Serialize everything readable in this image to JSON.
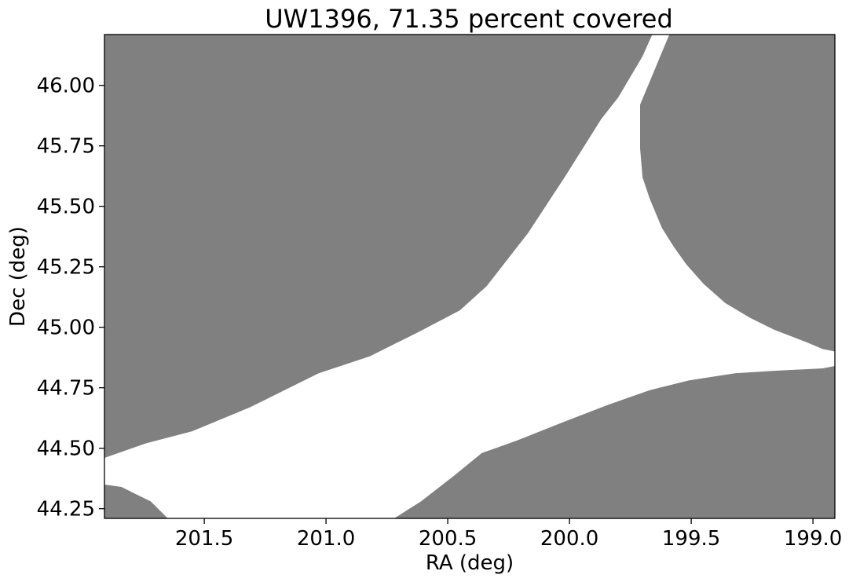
{
  "chart_data": {
    "type": "area",
    "title": "UW1396, 71.35 percent covered",
    "xlabel": "RA (deg)",
    "ylabel": "Dec (deg)",
    "xlim": [
      201.91,
      198.91
    ],
    "ylim": [
      44.21,
      46.21
    ],
    "x_ticks": [
      201.5,
      201.0,
      200.5,
      200.0,
      199.5,
      199.0
    ],
    "x_tick_labels": [
      "201.5",
      "201.0",
      "200.5",
      "200.0",
      "199.5",
      "199.0"
    ],
    "y_ticks": [
      44.25,
      44.5,
      44.75,
      45.0,
      45.25,
      45.5,
      45.75,
      46.0
    ],
    "y_tick_labels": [
      "44.25",
      "44.50",
      "44.75",
      "45.00",
      "45.25",
      "45.50",
      "45.75",
      "46.00"
    ],
    "grid": false,
    "fill_color": "#808080",
    "regions": [
      {
        "points": [
          [
            201.91,
            46.21
          ],
          [
            199.66,
            46.21
          ],
          [
            199.7,
            46.12
          ],
          [
            199.8,
            45.95
          ],
          [
            199.87,
            45.86
          ],
          [
            200.02,
            45.62
          ],
          [
            200.17,
            45.39
          ],
          [
            200.34,
            45.17
          ],
          [
            200.45,
            45.07
          ],
          [
            200.62,
            44.98
          ],
          [
            200.82,
            44.88
          ],
          [
            201.03,
            44.81
          ],
          [
            201.31,
            44.67
          ],
          [
            201.55,
            44.57
          ],
          [
            201.74,
            44.52
          ],
          [
            201.91,
            44.46
          ]
        ]
      },
      {
        "points": [
          [
            199.59,
            46.21
          ],
          [
            198.91,
            46.21
          ],
          [
            198.91,
            44.9
          ],
          [
            198.96,
            44.91
          ],
          [
            199.03,
            44.94
          ],
          [
            199.16,
            44.99
          ],
          [
            199.26,
            45.04
          ],
          [
            199.36,
            45.1
          ],
          [
            199.45,
            45.18
          ],
          [
            199.52,
            45.26
          ],
          [
            199.57,
            45.33
          ],
          [
            199.62,
            45.41
          ],
          [
            199.67,
            45.53
          ],
          [
            199.7,
            45.62
          ],
          [
            199.71,
            45.74
          ],
          [
            199.71,
            45.92
          ],
          [
            199.59,
            46.21
          ]
        ]
      },
      {
        "points": [
          [
            200.72,
            44.21
          ],
          [
            200.61,
            44.28
          ],
          [
            200.47,
            44.39
          ],
          [
            200.36,
            44.48
          ],
          [
            200.22,
            44.53
          ],
          [
            200.02,
            44.61
          ],
          [
            199.84,
            44.68
          ],
          [
            199.67,
            44.74
          ],
          [
            199.51,
            44.78
          ],
          [
            199.32,
            44.81
          ],
          [
            199.16,
            44.82
          ],
          [
            198.96,
            44.83
          ],
          [
            198.91,
            44.84
          ],
          [
            198.91,
            44.21
          ]
        ]
      },
      {
        "points": [
          [
            201.91,
            44.35
          ],
          [
            201.84,
            44.34
          ],
          [
            201.78,
            44.31
          ],
          [
            201.72,
            44.28
          ],
          [
            201.65,
            44.21
          ],
          [
            201.91,
            44.21
          ]
        ]
      }
    ]
  }
}
